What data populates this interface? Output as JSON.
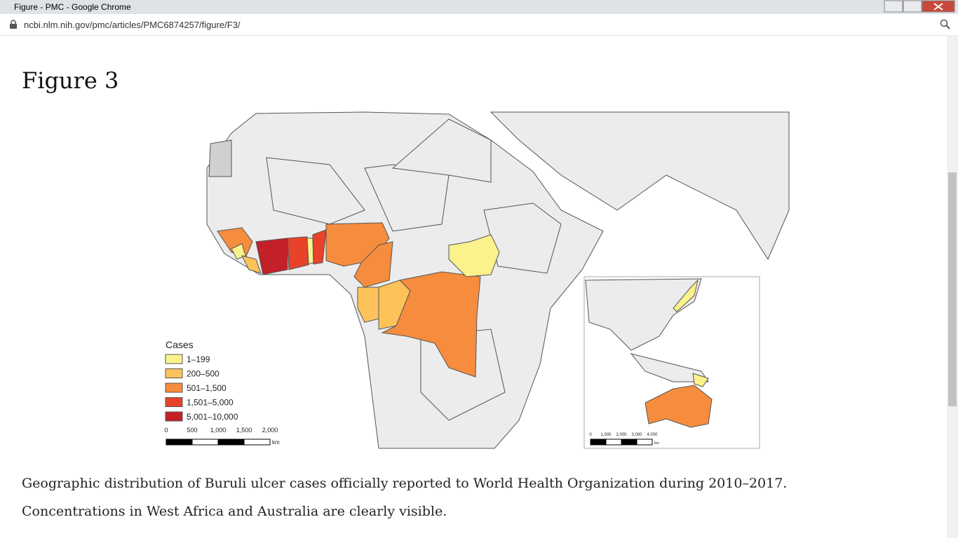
{
  "window": {
    "title": "Figure - PMC - Google Chrome"
  },
  "address_bar": {
    "url": "ncbi.nlm.nih.gov/pmc/articles/PMC6874257/figure/F3/"
  },
  "figure": {
    "heading": "Figure 3",
    "legend": {
      "title": "Cases",
      "items": [
        {
          "label": "1–199",
          "color": "#fbf28c"
        },
        {
          "label": "200–500",
          "color": "#fdc35a"
        },
        {
          "label": "501–1,500",
          "color": "#f68c3d"
        },
        {
          "label": "1,501–5,000",
          "color": "#e8432a"
        },
        {
          "label": "5,001–10,000",
          "color": "#c3202a"
        }
      ]
    },
    "scale_bar": {
      "labels": [
        "0",
        "500",
        "1,000",
        "1,500",
        "2,000"
      ],
      "unit": "km"
    },
    "inset_scale_bar": {
      "labels": [
        "0",
        "1,000",
        "2,000",
        "3,000",
        "4,000"
      ],
      "unit": "km"
    },
    "caption": [
      "Geographic distribution of Buruli ulcer cases officially reported to World Health Organization during 2010–2017.",
      "Concentrations in West Africa and Australia are clearly visible."
    ]
  }
}
